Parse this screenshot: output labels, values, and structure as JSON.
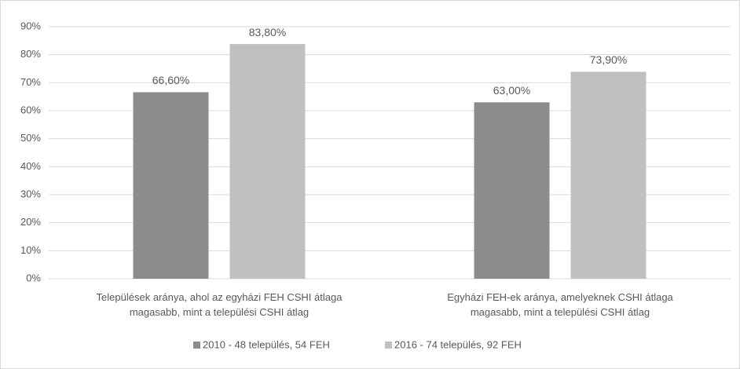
{
  "chart_data": {
    "type": "bar",
    "categories": [
      "Települések aránya, ahol az egyházi FEH CSHI átlaga\nmagasabb, mint a települési CSHI átlag",
      "Egyházi FEH-ek aránya, amelyeknek CSHI átlaga\nmagasabb, mint a települési CSHI átlag"
    ],
    "series": [
      {
        "name": "2010 - 48 település, 54 FEH",
        "color": "#8c8c8c",
        "values": [
          66.6,
          63.0
        ],
        "value_labels": [
          "66,60%",
          "63,00%"
        ]
      },
      {
        "name": "2016 - 74 település, 92 FEH",
        "color": "#c0c0c0",
        "values": [
          83.8,
          73.9
        ],
        "value_labels": [
          "83,80%",
          "73,90%"
        ]
      }
    ],
    "ylim": [
      0,
      90
    ],
    "yticks": [
      {
        "value": 0,
        "label": "0%"
      },
      {
        "value": 10,
        "label": "10%"
      },
      {
        "value": 20,
        "label": "20%"
      },
      {
        "value": 30,
        "label": "30%"
      },
      {
        "value": 40,
        "label": "40%"
      },
      {
        "value": 50,
        "label": "50%"
      },
      {
        "value": 60,
        "label": "60%"
      },
      {
        "value": 70,
        "label": "70%"
      },
      {
        "value": 80,
        "label": "80%"
      },
      {
        "value": 90,
        "label": "90%"
      }
    ],
    "grid": true,
    "legend": "bottom"
  }
}
